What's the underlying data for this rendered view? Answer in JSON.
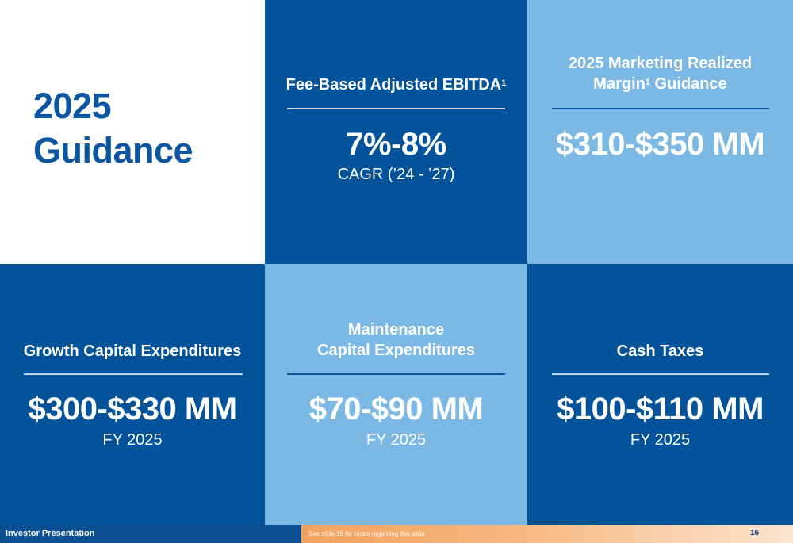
{
  "title": {
    "line1": "2025",
    "line2": "Guidance"
  },
  "cells": {
    "fee_based": {
      "heading": "Fee-Based Adjusted EBITDA",
      "sup": "1",
      "value": "7%-8%",
      "sub": "CAGR (’24 - ’27)"
    },
    "marketing": {
      "heading_line1": "2025 Marketing Realized",
      "heading_line2_pre": "Margin",
      "sup": "1",
      "heading_line2_post": " Guidance",
      "value": "$310-$350 MM"
    },
    "growth_capex": {
      "heading": "Growth Capital Expenditures",
      "value": "$300-$330 MM",
      "sub": "FY 2025"
    },
    "maintenance_capex": {
      "heading_line1": "Maintenance",
      "heading_line2": "Capital Expenditures",
      "value": "$70-$90 MM",
      "sub": "FY 2025"
    },
    "cash_taxes": {
      "heading": "Cash Taxes",
      "value": "$100-$110 MM",
      "sub": "FY 2025"
    }
  },
  "footer": {
    "left": "Investor Presentation",
    "note": "See slide 19 for notes regarding this slide",
    "page": "16"
  },
  "colors": {
    "dark_blue": "#03539a",
    "light_blue": "#7cb8e4",
    "title_blue": "#0b56a1",
    "footer_orange": "#f2a25f"
  }
}
